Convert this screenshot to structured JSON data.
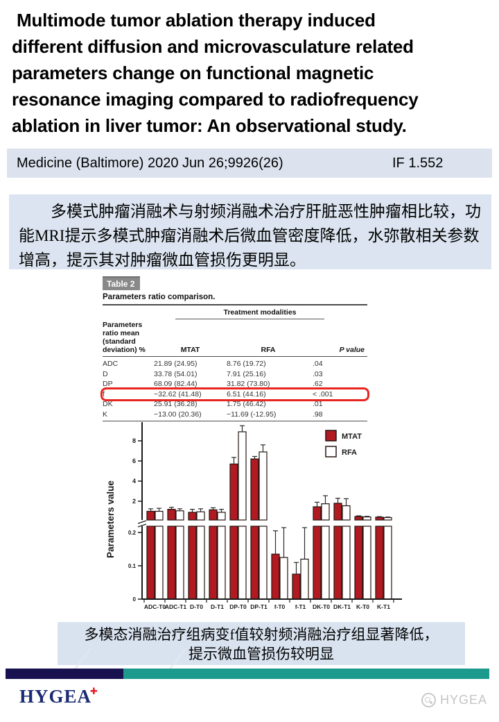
{
  "title": {
    "lines": [
      " Multimode tumor ablation therapy induced",
      "different diffusion and microvasculature related",
      "parameters change on functional magnetic",
      "resonance imaging compared to radiofrequency",
      "ablation in liver tumor: An observational study."
    ]
  },
  "citation": {
    "text": "Medicine (Baltimore) 2020 Jun 26;9926(26)",
    "impact_factor": "IF 1.552"
  },
  "abstract_cn": {
    "text": "多模式肿瘤消融术与射频消融术治疗肝脏恶性肿瘤相比较，功能MRI提示多模式肿瘤消融术后微血管密度降低，水弥散相关参数增高，提示其对肿瘤微血管损伤更明显。"
  },
  "table": {
    "badge": "Table 2",
    "caption": "Parameters ratio comparison.",
    "group_header": "Treatment modalities",
    "param_header_line1": "Parameters ratio mean",
    "param_header_line2": "(standard deviation) %",
    "columns": [
      "MTAT",
      "RFA",
      "P value"
    ],
    "rows": [
      {
        "param": "ADC",
        "mtat": "21.89 (24.95)",
        "rfa": "8.76 (19.72)",
        "p": ".04",
        "highlight": false
      },
      {
        "param": "D",
        "mtat": "33.78 (54.01)",
        "rfa": "7.91 (25.16)",
        "p": ".03",
        "highlight": false
      },
      {
        "param": "DP",
        "mtat": "68.09 (82.44)",
        "rfa": "31.82 (73.80)",
        "p": ".62",
        "highlight": false
      },
      {
        "param": "f",
        "mtat": "−32.62 (41.48)",
        "rfa": "6.51 (44.16)",
        "p": "< .001",
        "highlight": true
      },
      {
        "param": "DK",
        "mtat": "25.91 (36.28)",
        "rfa": "1.75 (46.42)",
        "p": ".01",
        "highlight": false
      },
      {
        "param": "K",
        "mtat": "−13.00 (20.36)",
        "rfa": "−11.69 (-12.95)",
        "p": ".98",
        "highlight": false
      }
    ]
  },
  "chart_data": {
    "type": "bar",
    "title": "",
    "ylabel": "Parameters value",
    "categories": [
      "ADC-T0",
      "ADC-T1",
      "D-T0",
      "D-T1",
      "DP-T0",
      "DP-T1",
      "f-T0",
      "f-T1",
      "DK-T0",
      "DK-T1",
      "K-T0",
      "K-T1"
    ],
    "series": [
      {
        "name": "MTAT",
        "color": "#b11a21",
        "values": [
          1.0,
          1.2,
          0.9,
          1.15,
          5.7,
          6.2,
          0.135,
          0.075,
          1.45,
          1.8,
          0.48,
          0.42
        ],
        "errors": [
          0.25,
          0.2,
          0.3,
          0.2,
          0.65,
          0.25,
          0.07,
          0.035,
          0.45,
          0.5,
          0.07,
          0.05
        ]
      },
      {
        "name": "RFA",
        "color": "#ffffff",
        "values": [
          1.0,
          1.05,
          0.95,
          0.9,
          8.9,
          6.9,
          0.125,
          0.12,
          1.75,
          1.55,
          0.44,
          0.38
        ],
        "errors": [
          0.3,
          0.2,
          0.3,
          0.3,
          0.6,
          0.7,
          0.12,
          0.115,
          0.8,
          0.7,
          0.06,
          0.05
        ]
      }
    ],
    "axis_break": true,
    "lower_axis": {
      "range": [
        0,
        0.22
      ],
      "ticks": [
        0,
        0.1,
        0.2
      ]
    },
    "upper_axis": {
      "ticks": [
        2,
        4,
        6,
        8
      ],
      "max": 9.6
    },
    "legend_position": "upper-right",
    "grid": false
  },
  "caption_cn": {
    "line1": "多模态消融治疗组病变f值较射频消融治疗组显著降低，",
    "line2": "提示微血管损伤较明显"
  },
  "footer": {
    "logo_text": "HYGEA",
    "logo_cross": "✚",
    "watermark_text": "HYGEA"
  },
  "colors": {
    "bar_red": "#b11a21",
    "highlight_box_red": "#e8251f",
    "footer_navy": "#17114f",
    "footer_teal": "#1c9a8e",
    "block_blue": "#dbe4f0",
    "logo_navy": "#1b2b72",
    "logo_red": "#e51c23",
    "badge_gray": "#898989",
    "watermark_gray": "#c4c4c4"
  }
}
